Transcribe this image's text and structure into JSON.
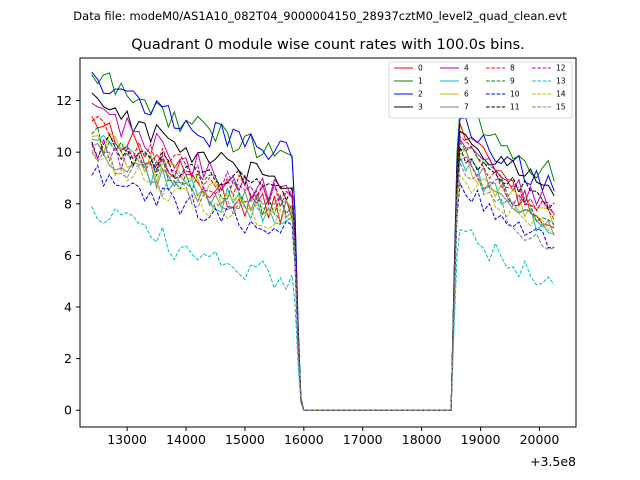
{
  "suptitle": "Data file: modeM0/AS1A10_082T04_9000004150_28937cztM0_level2_quad_clean.evt",
  "chart_data": {
    "type": "line",
    "title": "Quadrant 0 module wise count rates with 100.0s bins.",
    "xlabel": "",
    "ylabel": "",
    "x_offset_label": "+3.5e8",
    "xlim": [
      12200,
      20620
    ],
    "ylim": [
      -0.65,
      13.65
    ],
    "x_ticks": [
      13000,
      14000,
      15000,
      16000,
      17000,
      18000,
      19000,
      20000
    ],
    "x_tick_labels": [
      "13000",
      "14000",
      "15000",
      "16000",
      "17000",
      "18000",
      "19000",
      "20000"
    ],
    "y_ticks": [
      0,
      2,
      4,
      6,
      8,
      10,
      12
    ],
    "y_tick_labels": [
      "0",
      "2",
      "4",
      "6",
      "8",
      "10",
      "12"
    ],
    "grid": false,
    "legend_position": "top-right",
    "legend_columns": 4,
    "series": [
      {
        "name": "0",
        "color": "#ff0000",
        "style": "solid",
        "start": 11.4,
        "end_seg1": 7.7,
        "peak2": 11.1,
        "end": 7.4
      },
      {
        "name": "1",
        "color": "#008000",
        "style": "solid",
        "start": 13.0,
        "end_seg1": 10.1,
        "peak2": 11.7,
        "end": 9.2
      },
      {
        "name": "2",
        "color": "#0000ff",
        "style": "solid",
        "start": 13.1,
        "end_seg1": 10.0,
        "peak2": 11.3,
        "end": 8.8
      },
      {
        "name": "3",
        "color": "#000000",
        "style": "solid",
        "start": 12.3,
        "end_seg1": 8.8,
        "peak2": 10.8,
        "end": 8.6
      },
      {
        "name": "4",
        "color": "#bf00bf",
        "style": "solid",
        "start": 11.9,
        "end_seg1": 8.4,
        "peak2": 10.5,
        "end": 7.9
      },
      {
        "name": "5",
        "color": "#00bfbf",
        "style": "solid",
        "start": 10.5,
        "end_seg1": 7.6,
        "peak2": 9.8,
        "end": 7.1
      },
      {
        "name": "6",
        "color": "#bfbf00",
        "style": "solid",
        "start": 10.6,
        "end_seg1": 7.9,
        "peak2": 9.9,
        "end": 7.3
      },
      {
        "name": "7",
        "color": "#808080",
        "style": "solid",
        "start": 10.2,
        "end_seg1": 7.8,
        "peak2": 10.1,
        "end": 7.0
      },
      {
        "name": "8",
        "color": "#ff0000",
        "style": "dashed",
        "start": 11.2,
        "end_seg1": 8.3,
        "peak2": 10.6,
        "end": 7.6
      },
      {
        "name": "9",
        "color": "#008000",
        "style": "dashed",
        "start": 10.7,
        "end_seg1": 8.0,
        "peak2": 10.4,
        "end": 7.4
      },
      {
        "name": "10",
        "color": "#0000ff",
        "style": "dashed",
        "start": 9.1,
        "end_seg1": 7.2,
        "peak2": 8.8,
        "end": 6.5
      },
      {
        "name": "11",
        "color": "#000000",
        "style": "dashed",
        "start": 10.4,
        "end_seg1": 8.6,
        "peak2": 10.2,
        "end": 8.2
      },
      {
        "name": "12",
        "color": "#bf00bf",
        "style": "dashed",
        "start": 10.3,
        "end_seg1": 8.4,
        "peak2": 9.7,
        "end": 7.7
      },
      {
        "name": "13",
        "color": "#00bfbf",
        "style": "dashed",
        "start": 7.9,
        "end_seg1": 5.2,
        "peak2": 7.0,
        "end": 5.0
      },
      {
        "name": "14",
        "color": "#bfbf00",
        "style": "dashed",
        "start": 10.1,
        "end_seg1": 7.4,
        "peak2": 9.1,
        "end": 7.0
      },
      {
        "name": "15",
        "color": "#808080",
        "style": "dashed",
        "start": 10.0,
        "end_seg1": 7.6,
        "peak2": 9.6,
        "end": 6.4
      }
    ],
    "segments": {
      "seg1_start": 12400,
      "seg1_end": 15800,
      "drop_points": [
        15850,
        15900,
        15950
      ],
      "zero_range": [
        16000,
        18500
      ],
      "rise_points": [
        18550,
        18600
      ],
      "seg2_start": 18650,
      "seg2_end": 20200,
      "bin": 100
    }
  }
}
